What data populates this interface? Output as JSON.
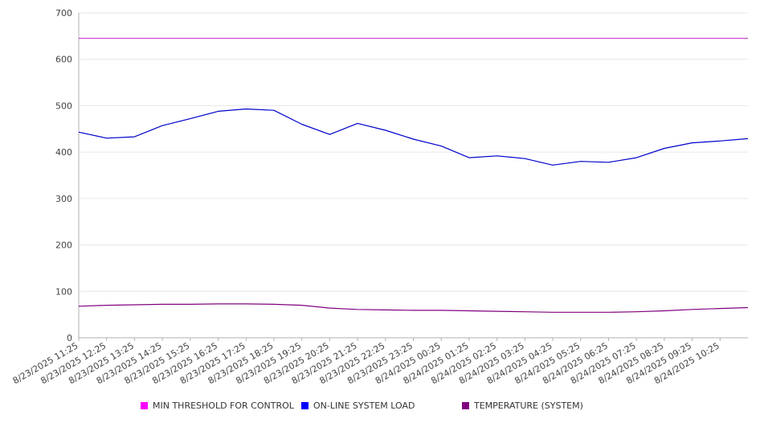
{
  "chart_data": {
    "type": "line",
    "title": "",
    "xlabel": "",
    "ylabel": "",
    "ylim": [
      0,
      700
    ],
    "y_ticks": [
      0,
      100,
      200,
      300,
      400,
      500,
      600,
      700
    ],
    "x_tick_labels": [
      "8/23/2025 11:25",
      "8/23/2025 12:25",
      "8/23/2025 13:25",
      "8/23/2025 14:25",
      "8/23/2025 15:25",
      "8/23/2025 16:25",
      "8/23/2025 17:25",
      "8/23/2025 18:25",
      "8/23/2025 19:25",
      "8/23/2025 20:25",
      "8/23/2025 21:25",
      "8/23/2025 22:25",
      "8/23/2025 23:25",
      "8/24/2025 00:25",
      "8/24/2025 01:25",
      "8/24/2025 02:25",
      "8/24/2025 03:25",
      "8/24/2025 04:25",
      "8/24/2025 05:25",
      "8/24/2025 06:25",
      "8/24/2025 07:25",
      "8/24/2025 08:25",
      "8/24/2025 09:25",
      "8/24/2025 10:25"
    ],
    "x": [
      "8/23/2025 11:25",
      "8/23/2025 12:25",
      "8/23/2025 13:25",
      "8/23/2025 14:25",
      "8/23/2025 15:25",
      "8/23/2025 16:25",
      "8/23/2025 17:25",
      "8/23/2025 18:25",
      "8/23/2025 19:25",
      "8/23/2025 20:25",
      "8/23/2025 21:25",
      "8/23/2025 22:25",
      "8/23/2025 23:25",
      "8/24/2025 00:25",
      "8/24/2025 01:25",
      "8/24/2025 02:25",
      "8/24/2025 03:25",
      "8/24/2025 04:25",
      "8/24/2025 05:25",
      "8/24/2025 06:25",
      "8/24/2025 07:25",
      "8/24/2025 08:25",
      "8/24/2025 09:25",
      "8/24/2025 10:25",
      "8/24/2025 11:25"
    ],
    "series": [
      {
        "name": "MIN THRESHOLD FOR CONTROL",
        "color": "#cc33cc",
        "values": [
          645,
          645,
          645,
          645,
          645,
          645,
          645,
          645,
          645,
          645,
          645,
          645,
          645,
          645,
          645,
          645,
          645,
          645,
          645,
          645,
          645,
          645,
          645,
          645,
          645
        ]
      },
      {
        "name": "ON-LINE SYSTEM LOAD",
        "color": "#0000cc",
        "values": [
          443,
          430,
          433,
          457,
          472,
          488,
          493,
          490,
          460,
          438,
          462,
          447,
          428,
          413,
          388,
          392,
          386,
          372,
          380,
          378,
          388,
          408,
          420,
          424,
          429
        ]
      },
      {
        "name": "TEMPERATURE (SYSTEM)",
        "color": "#800080",
        "values": [
          68,
          70,
          71,
          72,
          72,
          73,
          73,
          72,
          70,
          64,
          61,
          60,
          59,
          59,
          58,
          57,
          56,
          55,
          55,
          55,
          56,
          58,
          61,
          63,
          65
        ]
      }
    ],
    "grid": true,
    "legend_position": "bottom"
  },
  "legend": {
    "items": [
      {
        "label": "MIN THRESHOLD FOR CONTROL",
        "color": "#ff00ff"
      },
      {
        "label": "ON-LINE SYSTEM LOAD",
        "color": "#0000ff"
      },
      {
        "label": "TEMPERATURE (SYSTEM)",
        "color": "#800080"
      }
    ]
  }
}
